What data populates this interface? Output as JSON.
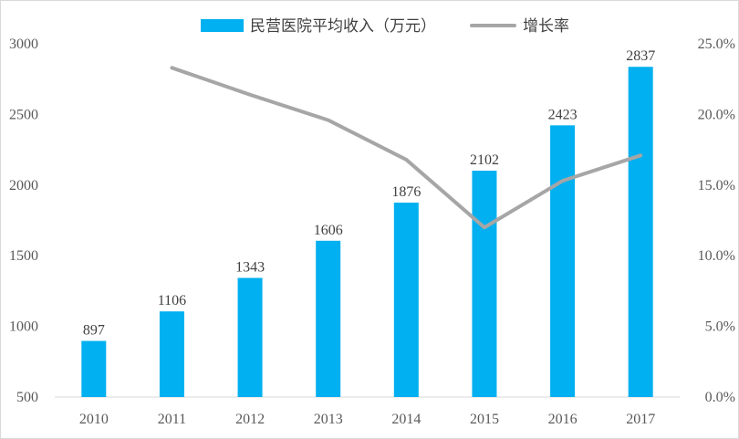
{
  "chart_data": {
    "type": "bar",
    "categories": [
      "2010",
      "2011",
      "2012",
      "2013",
      "2014",
      "2015",
      "2016",
      "2017"
    ],
    "series": [
      {
        "name": "民营医院平均收入（万元）",
        "type": "bar",
        "axis": "left",
        "color": "#00b0f0",
        "values": [
          897,
          1106,
          1343,
          1606,
          1876,
          2102,
          2423,
          2837
        ]
      },
      {
        "name": "增长率",
        "type": "line",
        "axis": "right",
        "color": "#a6a6a6",
        "values": [
          null,
          23.3,
          21.4,
          19.6,
          16.8,
          12.0,
          15.3,
          17.1
        ]
      }
    ],
    "left_axis": {
      "min": 500,
      "max": 3000,
      "ticks": [
        "3000",
        "2500",
        "2000",
        "1500",
        "1000",
        "500"
      ]
    },
    "right_axis": {
      "min": 0,
      "max": 25,
      "ticks": [
        "25.0%",
        "20.0%",
        "15.0%",
        "10.0%",
        "5.0%",
        "0.0%"
      ]
    },
    "legend_position": "top",
    "grid": false
  }
}
